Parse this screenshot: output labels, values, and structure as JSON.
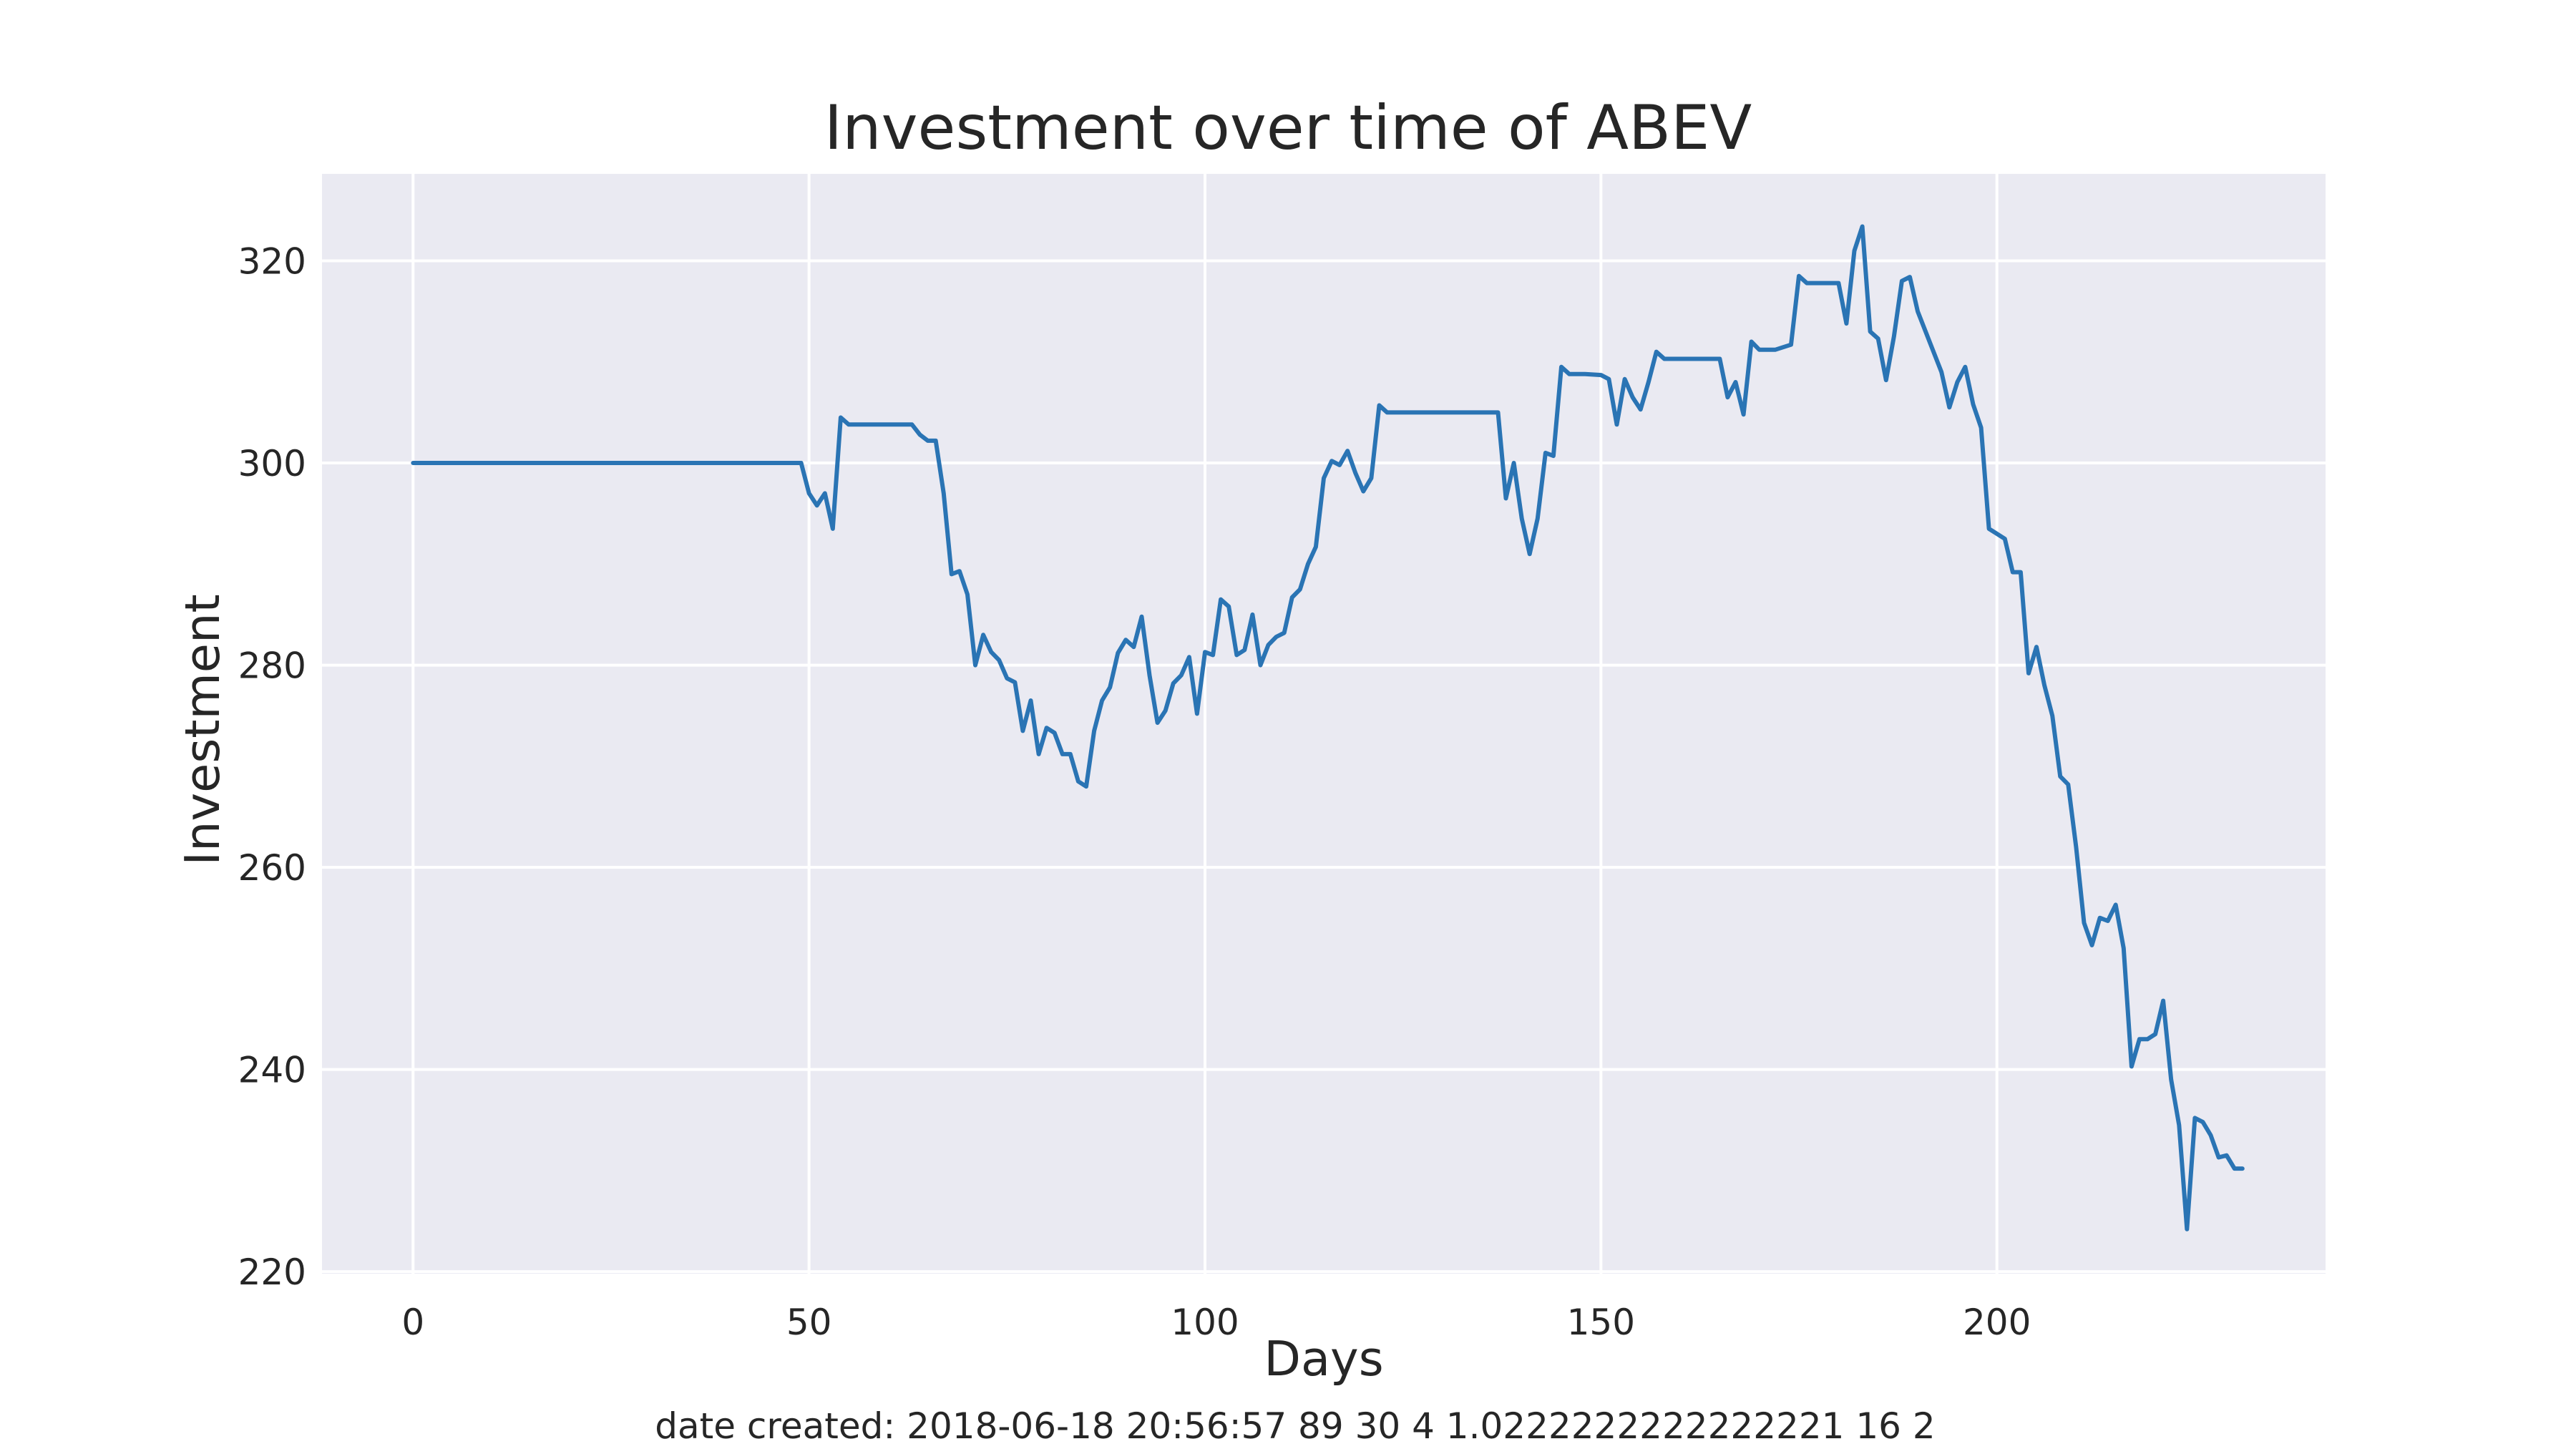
{
  "chart_data": {
    "type": "line",
    "title": "Investment over time of ABEV",
    "xlabel": "Days",
    "ylabel": "Investment",
    "xlim": [
      -11.5,
      241.5
    ],
    "ylim": [
      219.8,
      328.6
    ],
    "xticks": [
      0,
      50,
      100,
      150,
      200
    ],
    "yticks": [
      220,
      240,
      260,
      280,
      300,
      320
    ],
    "grid": true,
    "background": "#eaeaf2",
    "grid_color": "#ffffff",
    "line_color": "#2a74b4",
    "series": [
      {
        "points": [
          [
            0,
            300
          ],
          [
            10,
            300
          ],
          [
            20,
            300
          ],
          [
            30,
            300
          ],
          [
            40,
            300
          ],
          [
            49,
            300
          ],
          [
            50,
            297
          ],
          [
            51,
            295.8
          ],
          [
            52,
            297
          ],
          [
            53,
            293.5
          ],
          [
            54,
            304.5
          ],
          [
            55,
            303.8
          ],
          [
            56,
            303.8
          ],
          [
            60,
            303.8
          ],
          [
            63,
            303.8
          ],
          [
            64,
            302.8
          ],
          [
            65,
            302.2
          ],
          [
            66,
            302.2
          ],
          [
            67,
            297
          ],
          [
            68,
            289
          ],
          [
            69,
            289.3
          ],
          [
            70,
            287
          ],
          [
            71,
            280
          ],
          [
            72,
            283
          ],
          [
            73,
            281.3
          ],
          [
            74,
            280.5
          ],
          [
            75,
            278.7
          ],
          [
            76,
            278.3
          ],
          [
            77,
            273.5
          ],
          [
            78,
            276.5
          ],
          [
            79,
            271.2
          ],
          [
            80,
            273.8
          ],
          [
            81,
            273.3
          ],
          [
            82,
            271.2
          ],
          [
            83,
            271.2
          ],
          [
            84,
            268.5
          ],
          [
            85,
            268
          ],
          [
            86,
            273.5
          ],
          [
            87,
            276.5
          ],
          [
            88,
            277.8
          ],
          [
            89,
            281.2
          ],
          [
            90,
            282.5
          ],
          [
            91,
            281.8
          ],
          [
            92,
            284.8
          ],
          [
            93,
            279
          ],
          [
            94,
            274.3
          ],
          [
            95,
            275.5
          ],
          [
            96,
            278.2
          ],
          [
            97,
            279
          ],
          [
            98,
            280.8
          ],
          [
            99,
            275.2
          ],
          [
            100,
            281.3
          ],
          [
            101,
            281
          ],
          [
            102,
            286.5
          ],
          [
            103,
            285.8
          ],
          [
            104,
            281
          ],
          [
            105,
            281.5
          ],
          [
            106,
            285
          ],
          [
            107,
            280
          ],
          [
            108,
            282
          ],
          [
            109,
            282.8
          ],
          [
            110,
            283.2
          ],
          [
            111,
            286.7
          ],
          [
            112,
            287.5
          ],
          [
            113,
            290
          ],
          [
            114,
            291.7
          ],
          [
            115,
            298.5
          ],
          [
            116,
            300.2
          ],
          [
            117,
            299.8
          ],
          [
            118,
            301.2
          ],
          [
            119,
            299
          ],
          [
            120,
            297.2
          ],
          [
            121,
            298.5
          ],
          [
            122,
            305.7
          ],
          [
            123,
            305
          ],
          [
            125,
            305
          ],
          [
            130,
            305
          ],
          [
            135,
            305
          ],
          [
            137,
            305
          ],
          [
            138,
            296.5
          ],
          [
            139,
            300
          ],
          [
            140,
            294.5
          ],
          [
            141,
            291
          ],
          [
            142,
            294.5
          ],
          [
            143,
            301
          ],
          [
            144,
            300.7
          ],
          [
            145,
            309.5
          ],
          [
            146,
            308.8
          ],
          [
            148,
            308.8
          ],
          [
            150,
            308.7
          ],
          [
            151,
            308.3
          ],
          [
            152,
            303.8
          ],
          [
            153,
            308.3
          ],
          [
            154,
            306.5
          ],
          [
            155,
            305.3
          ],
          [
            156,
            308
          ],
          [
            157,
            311
          ],
          [
            158,
            310.3
          ],
          [
            160,
            310.3
          ],
          [
            165,
            310.3
          ],
          [
            166,
            306.5
          ],
          [
            167,
            308
          ],
          [
            168,
            304.8
          ],
          [
            169,
            312
          ],
          [
            170,
            311.2
          ],
          [
            172,
            311.2
          ],
          [
            174,
            311.7
          ],
          [
            175,
            318.5
          ],
          [
            176,
            317.8
          ],
          [
            178,
            317.8
          ],
          [
            180,
            317.8
          ],
          [
            181,
            313.8
          ],
          [
            182,
            321
          ],
          [
            183,
            323.4
          ],
          [
            184,
            313
          ],
          [
            185,
            312.3
          ],
          [
            186,
            308.2
          ],
          [
            187,
            312.5
          ],
          [
            188,
            318
          ],
          [
            189,
            318.4
          ],
          [
            190,
            315
          ],
          [
            193,
            309
          ],
          [
            194,
            305.5
          ],
          [
            195,
            308
          ],
          [
            196,
            309.5
          ],
          [
            197,
            305.8
          ],
          [
            198,
            303.5
          ],
          [
            199,
            293.5
          ],
          [
            200,
            293
          ],
          [
            201,
            292.5
          ],
          [
            202,
            289.2
          ],
          [
            203,
            289.2
          ],
          [
            204,
            279.2
          ],
          [
            205,
            281.8
          ],
          [
            206,
            278
          ],
          [
            207,
            275
          ],
          [
            208,
            269
          ],
          [
            209,
            268.2
          ],
          [
            210,
            262
          ],
          [
            211,
            254.5
          ],
          [
            212,
            252.3
          ],
          [
            213,
            255
          ],
          [
            214,
            254.7
          ],
          [
            215,
            256.3
          ],
          [
            216,
            252
          ],
          [
            217,
            240.3
          ],
          [
            218,
            243
          ],
          [
            219,
            243
          ],
          [
            220,
            243.5
          ],
          [
            221,
            246.8
          ],
          [
            222,
            239
          ],
          [
            223,
            234.5
          ],
          [
            224,
            224.2
          ],
          [
            225,
            235.2
          ],
          [
            226,
            234.8
          ],
          [
            227,
            233.5
          ],
          [
            228,
            231.3
          ],
          [
            229,
            231.5
          ],
          [
            230,
            230.2
          ],
          [
            231,
            230.2
          ]
        ]
      }
    ],
    "footnote": "date created: 2018-06-18 20:56:57 89 30 4 1.0222222222222221 16 2"
  }
}
